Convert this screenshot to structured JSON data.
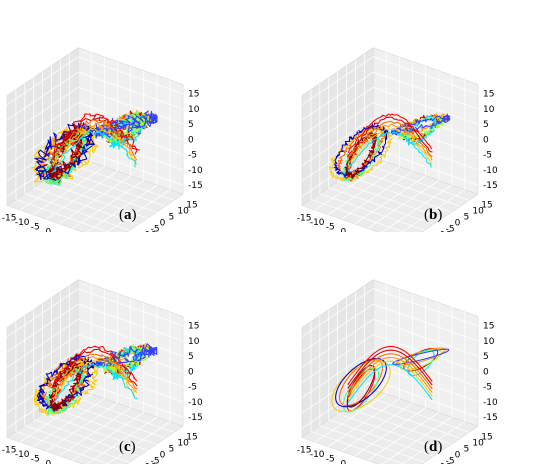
{
  "chart_data": [
    {
      "type": "line",
      "caption_open": "(",
      "caption_letter": "a",
      "caption_close": ")",
      "x_ticks": [
        -15,
        -10,
        -5,
        0,
        5,
        10,
        15
      ],
      "y_ticks": [
        -15,
        -10,
        -5,
        0,
        5,
        10,
        15
      ],
      "z_ticks": [
        15,
        10,
        5,
        0,
        -5,
        -10,
        -15
      ],
      "xlim": [
        -20,
        20
      ],
      "ylim": [
        -20,
        20
      ],
      "zlim": [
        -18,
        18
      ],
      "grid": true,
      "noise": 1.6,
      "series_colors": [
        "#ff0000",
        "#d40000",
        "#ff6a00",
        "#ff9900",
        "#ffcc00",
        "#00e5ff",
        "#40ff9a",
        "#9aff40",
        "#0000cc",
        "#3340ff",
        "#8b0000"
      ]
    },
    {
      "type": "line",
      "caption_open": "(",
      "caption_letter": "b",
      "caption_close": ")",
      "x_ticks": [
        -15,
        -10,
        -5,
        0,
        5,
        10,
        15
      ],
      "y_ticks": [
        -15,
        -10,
        -5,
        0,
        5,
        10,
        15
      ],
      "z_ticks": [
        15,
        10,
        5,
        0,
        -5,
        -10,
        -15
      ],
      "xlim": [
        -20,
        20
      ],
      "ylim": [
        -20,
        20
      ],
      "zlim": [
        -18,
        18
      ],
      "grid": true,
      "noise": 0.7,
      "series_colors": [
        "#ff0000",
        "#d40000",
        "#ff6a00",
        "#ff9900",
        "#ffcc00",
        "#00e5ff",
        "#40ff9a",
        "#9aff40",
        "#0000cc",
        "#3340ff",
        "#8b0000"
      ]
    },
    {
      "type": "line",
      "caption_open": "(",
      "caption_letter": "c",
      "caption_close": ")",
      "x_ticks": [
        -15,
        -10,
        -5,
        0,
        5,
        10,
        15
      ],
      "y_ticks": [
        -15,
        -10,
        -5,
        0,
        5,
        10,
        15
      ],
      "z_ticks": [
        15,
        10,
        5,
        0,
        -5,
        -10,
        -15
      ],
      "xlim": [
        -20,
        20
      ],
      "ylim": [
        -20,
        20
      ],
      "zlim": [
        -18,
        18
      ],
      "grid": true,
      "noise": 1.2,
      "series_colors": [
        "#ff0000",
        "#d40000",
        "#ff6a00",
        "#ff9900",
        "#ffcc00",
        "#00e5ff",
        "#40ff9a",
        "#9aff40",
        "#0000cc",
        "#3340ff",
        "#8b0000"
      ]
    },
    {
      "type": "line",
      "caption_open": "(",
      "caption_letter": "d",
      "caption_close": ")",
      "x_ticks": [
        -15,
        -10,
        -5,
        0,
        5,
        10,
        15
      ],
      "y_ticks": [
        -15,
        -10,
        -5,
        0,
        5,
        10,
        15
      ],
      "z_ticks": [
        15,
        10,
        5,
        0,
        -5,
        -10,
        -15
      ],
      "xlim": [
        -20,
        20
      ],
      "ylim": [
        -20,
        20
      ],
      "zlim": [
        -18,
        18
      ],
      "grid": true,
      "noise": 0.0,
      "series_colors": [
        "#ff0000",
        "#d40000",
        "#ff6a00",
        "#ff9900",
        "#ffcc00",
        "#00e5ff",
        "#40ff9a",
        "#9aff40",
        "#0000cc",
        "#3340ff",
        "#8b0000"
      ]
    }
  ]
}
